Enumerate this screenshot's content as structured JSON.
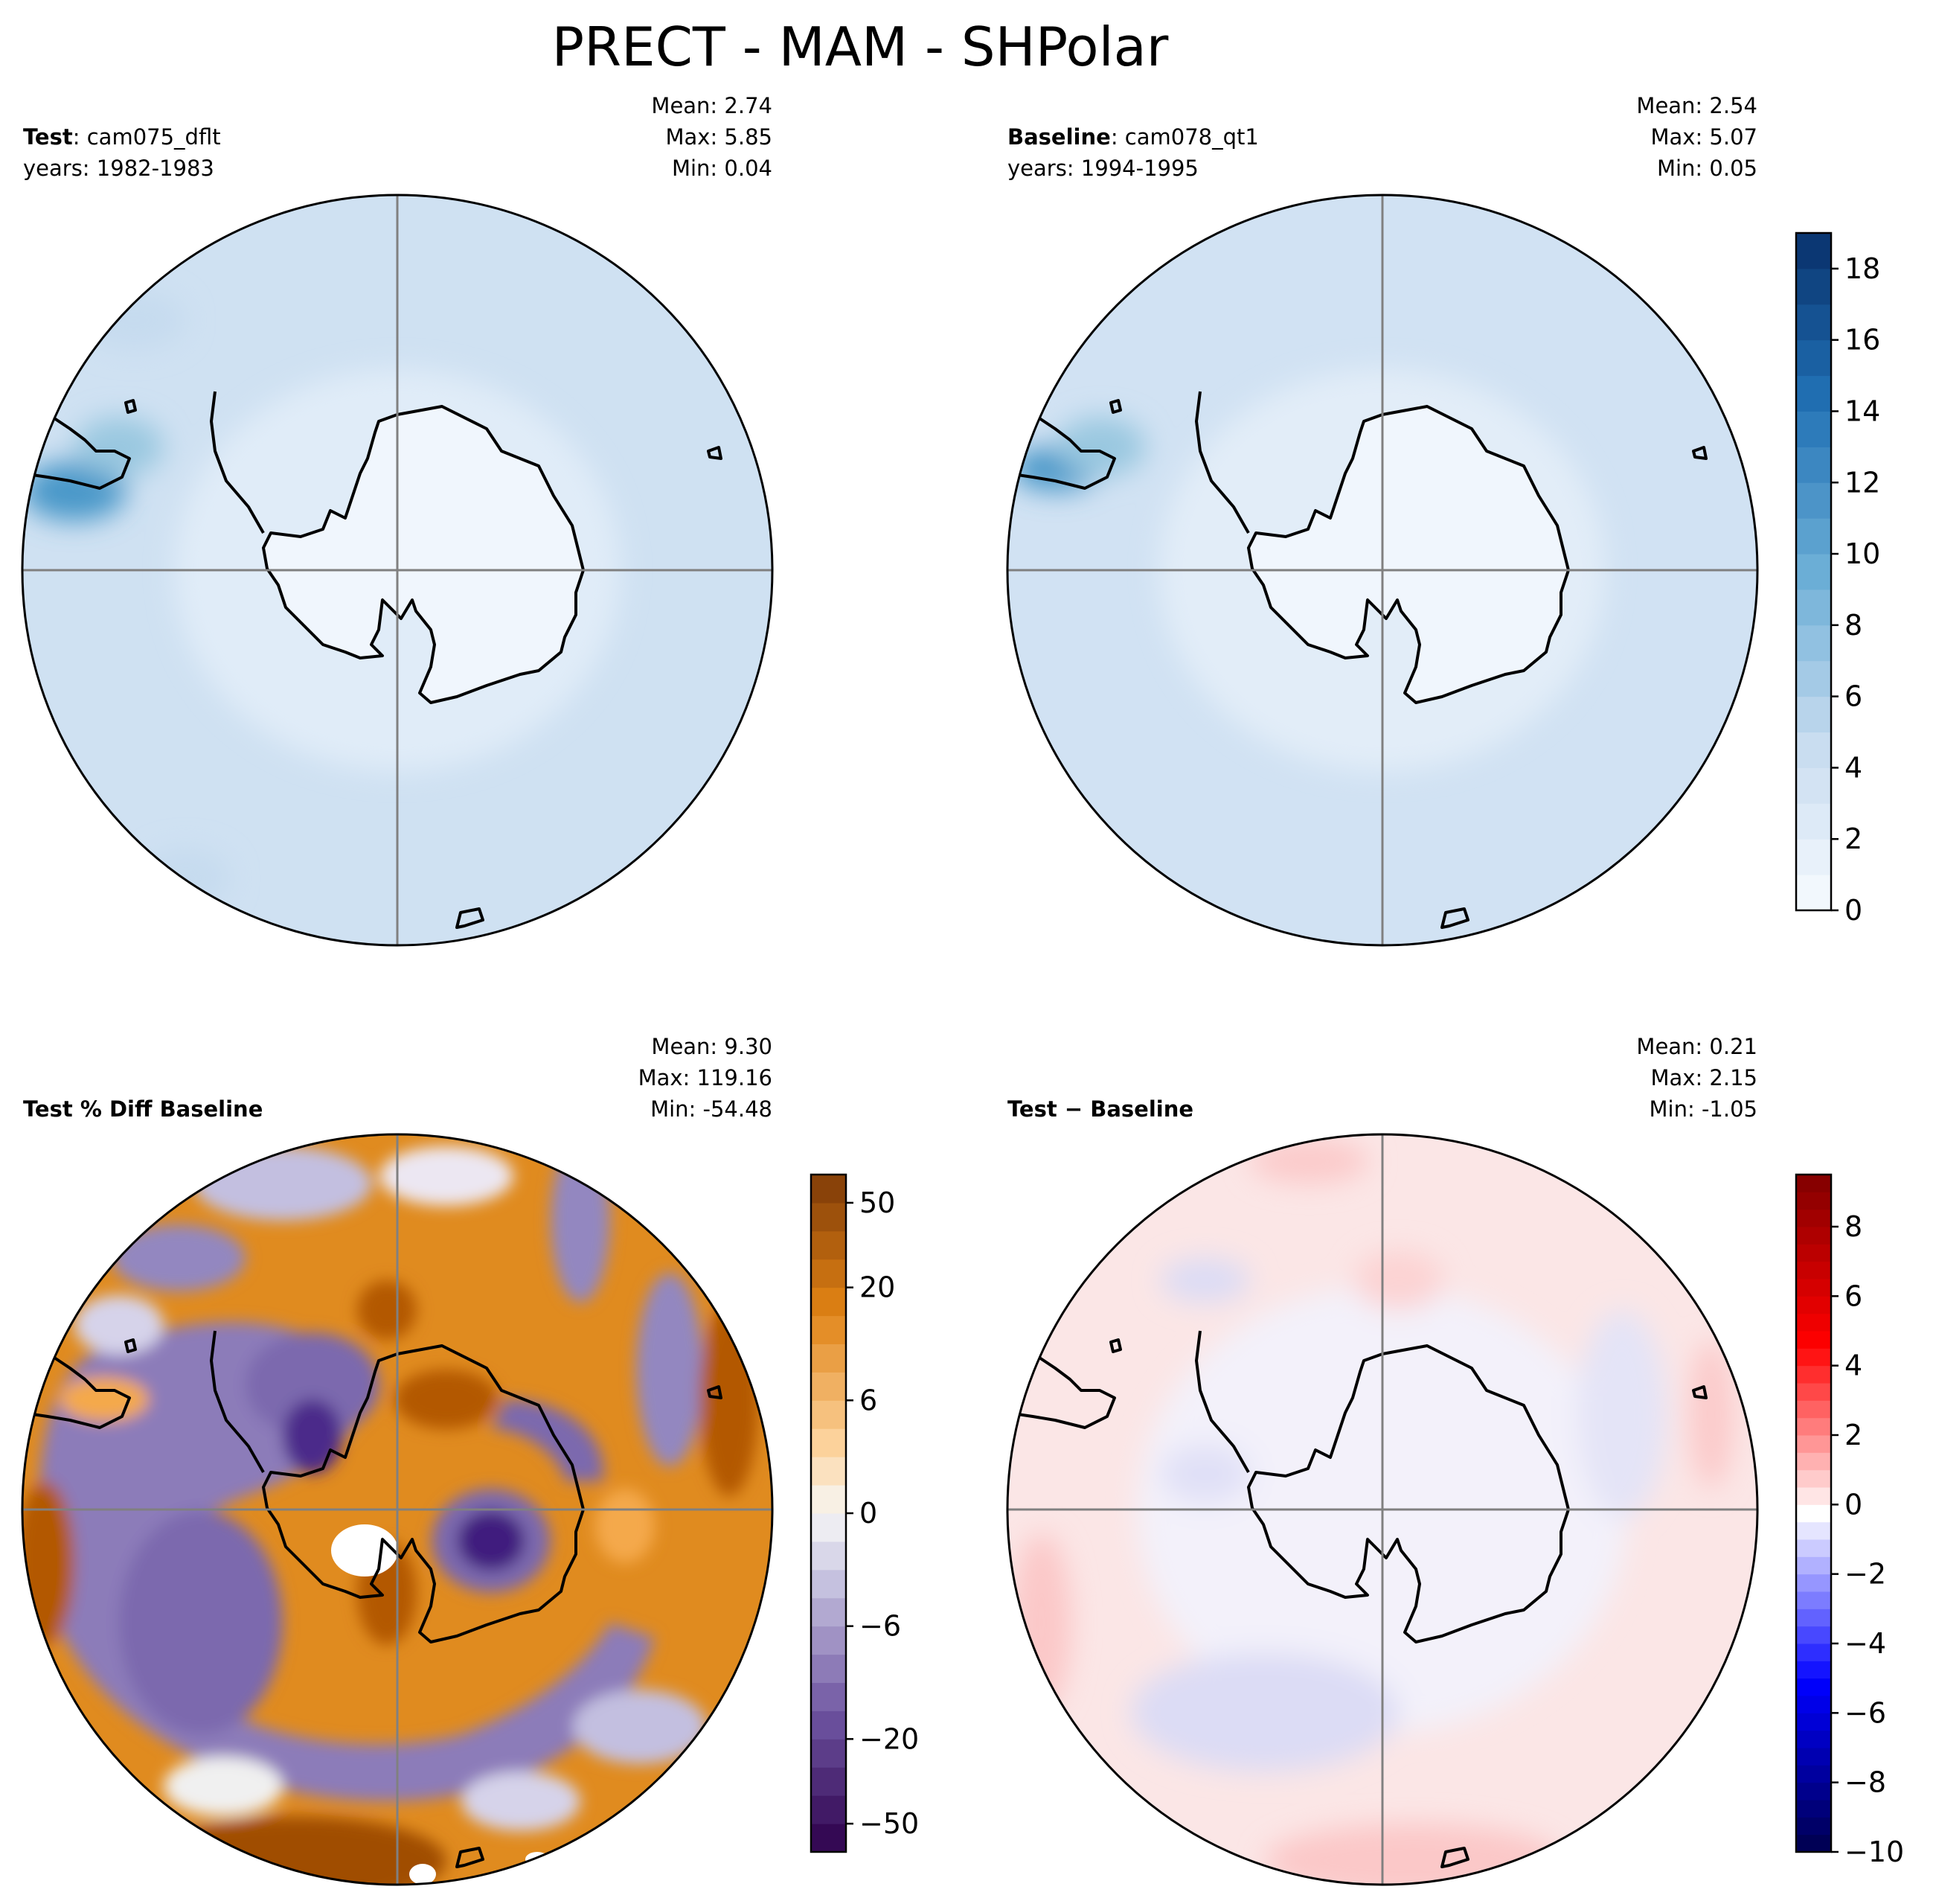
{
  "chart_data": {
    "type": "contour-map",
    "title": "PRECT - MAM - SHPolar",
    "panels": [
      {
        "id": "test",
        "label_bold": "Test",
        "label_rest": ": cam075_dflt",
        "years": "years: 1982-1983",
        "stats": {
          "mean": "Mean:  2.74",
          "max": "Max:  5.85",
          "min": "Min:  0.04"
        },
        "colormap": "Blues",
        "features": {
          "antarctica": "low precipitation (~0-2)",
          "ocean": "2-4",
          "drake_passage": "up to ~6"
        }
      },
      {
        "id": "baseline",
        "label_bold": "Baseline",
        "label_rest": ": cam078_qt1",
        "years": "years: 1994-1995",
        "stats": {
          "mean": "Mean:  2.54",
          "max": "Max:  5.07",
          "min": "Min:  0.05"
        },
        "colormap": "Blues",
        "features": {
          "antarctica": "low precipitation (~0-2)",
          "ocean": "2-4",
          "drake_passage": "up to ~6"
        }
      },
      {
        "id": "pct_diff",
        "label_bold": "Test % Diff Baseline",
        "label_rest": "",
        "years": "",
        "stats": {
          "mean": "Mean:  9.30",
          "max": "Max: 119.16",
          "min": "Min: -54.48"
        },
        "colormap": "PuOr_r",
        "colorbar": {
          "ticks": [
            "50",
            "20",
            "6",
            "0",
            "−6",
            "−20",
            "−50"
          ],
          "levels": [
            -70,
            -50,
            -40,
            -30,
            -20,
            -15,
            -10,
            -8,
            -6,
            -4,
            -2,
            -1,
            0,
            1,
            2,
            4,
            6,
            8,
            10,
            15,
            20,
            30,
            40,
            50,
            70
          ]
        }
      },
      {
        "id": "diff",
        "label_bold": "Test",
        "label_rest": " − Baseline",
        "years": "",
        "stats": {
          "mean": "Mean:  0.21",
          "max": "Max:  2.15",
          "min": "Min: -1.05"
        },
        "colormap": "seismic",
        "colorbar": {
          "ticks": [
            "8",
            "6",
            "4",
            "2",
            "0",
            "−2",
            "−4",
            "−6",
            "−8",
            "−10"
          ],
          "range": [
            -10,
            9.5
          ]
        }
      }
    ],
    "shared_colorbar": {
      "ticks": [
        "18",
        "16",
        "14",
        "12",
        "10",
        "8",
        "6",
        "4",
        "2",
        "0"
      ],
      "range": [
        0,
        19
      ]
    }
  }
}
